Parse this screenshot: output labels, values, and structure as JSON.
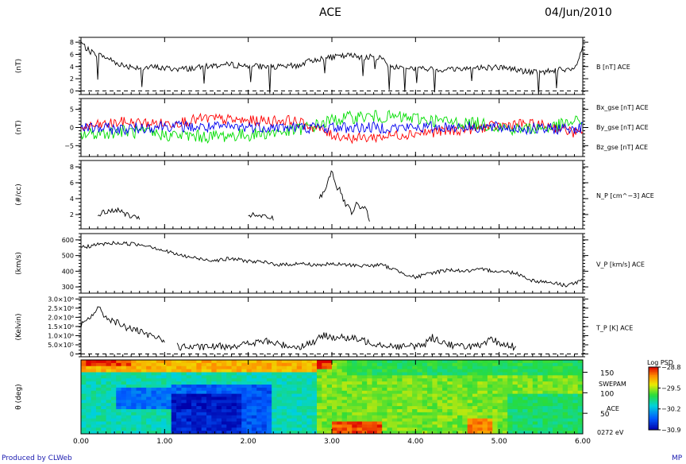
{
  "header": {
    "title": "ACE",
    "date": "04/Jun/2010"
  },
  "footer": {
    "credit": "Produced by CLWeb",
    "corner": "MP"
  },
  "chart_data": {
    "type": "line",
    "x_ticks": [
      "0.00",
      "1.00",
      "2.00",
      "3.00",
      "4.00",
      "5.00",
      "6.00"
    ],
    "xlim": [
      0,
      6
    ],
    "panels": [
      {
        "id": "b",
        "ylabel": "(nT)",
        "ylim": [
          -0.6,
          8.8
        ],
        "ticks": [
          {
            "v": 0,
            "t": "0"
          },
          {
            "v": 2,
            "t": "2"
          },
          {
            "v": 4,
            "t": "4"
          },
          {
            "v": 6,
            "t": "6"
          },
          {
            "v": 8,
            "t": "8"
          }
        ],
        "dashed_zero": true,
        "series": [
          {
            "label": "B [nT] ACE",
            "color": "#000000",
            "points": [
              [
                0,
                8.0
              ],
              [
                0.05,
                7.2
              ],
              [
                0.1,
                6.5
              ],
              [
                0.2,
                6.0
              ],
              [
                0.3,
                5.5
              ],
              [
                0.4,
                4.8
              ],
              [
                0.5,
                4.2
              ],
              [
                0.6,
                4.0
              ],
              [
                0.75,
                3.8
              ],
              [
                0.9,
                3.9
              ],
              [
                1.0,
                3.7
              ],
              [
                1.2,
                3.6
              ],
              [
                1.4,
                3.8
              ],
              [
                1.6,
                4.2
              ],
              [
                1.8,
                4.3
              ],
              [
                2.0,
                4.1
              ],
              [
                2.2,
                4.0
              ],
              [
                2.4,
                3.9
              ],
              [
                2.6,
                4.2
              ],
              [
                2.8,
                5.2
              ],
              [
                3.0,
                5.5
              ],
              [
                3.2,
                5.8
              ],
              [
                3.4,
                5.6
              ],
              [
                3.6,
                5.4
              ],
              [
                3.7,
                4.0
              ],
              [
                3.9,
                3.8
              ],
              [
                4.1,
                3.6
              ],
              [
                4.3,
                3.5
              ],
              [
                4.6,
                3.7
              ],
              [
                4.9,
                3.9
              ],
              [
                5.1,
                3.8
              ],
              [
                5.3,
                3.2
              ],
              [
                5.5,
                3.0
              ],
              [
                5.7,
                3.6
              ],
              [
                5.8,
                3.2
              ],
              [
                5.9,
                3.5
              ],
              [
                6.0,
                7.0
              ]
            ],
            "noise": 0.5
          }
        ]
      },
      {
        "id": "bxyz",
        "ylabel": "(nT)",
        "ylim": [
          -8,
          8
        ],
        "ticks": [
          {
            "v": -5,
            "t": "−5"
          },
          {
            "v": 0,
            "t": "0"
          },
          {
            "v": 5,
            "t": "5"
          }
        ],
        "dashed_zero": false,
        "series": [
          {
            "label": "Bx_gse [nT] ACE",
            "color": "#ff0000",
            "points": [
              [
                0,
                0
              ],
              [
                0.5,
                1.5
              ],
              [
                1.0,
                1.0
              ],
              [
                1.5,
                2.5
              ],
              [
                2.0,
                1.8
              ],
              [
                2.5,
                2.0
              ],
              [
                2.8,
                0
              ],
              [
                3.0,
                -2.0
              ],
              [
                3.3,
                -3.0
              ],
              [
                3.6,
                -2.5
              ],
              [
                4.0,
                -1.5
              ],
              [
                4.4,
                -1.0
              ],
              [
                4.8,
                0
              ],
              [
                5.2,
                1.0
              ],
              [
                5.6,
                0.5
              ],
              [
                6.0,
                -2.0
              ]
            ],
            "noise": 1.5
          },
          {
            "label": "By_gse [nT] ACE",
            "color": "#00dd00",
            "points": [
              [
                0,
                -2
              ],
              [
                0.5,
                -1
              ],
              [
                1.0,
                -2.0
              ],
              [
                1.5,
                -2.5
              ],
              [
                2.0,
                -2.0
              ],
              [
                2.5,
                -1.0
              ],
              [
                2.8,
                0.5
              ],
              [
                3.0,
                2.0
              ],
              [
                3.3,
                3.0
              ],
              [
                3.6,
                3.0
              ],
              [
                4.0,
                2.5
              ],
              [
                4.4,
                1.5
              ],
              [
                4.8,
                1.0
              ],
              [
                5.2,
                -0.5
              ],
              [
                5.6,
                0
              ],
              [
                6.0,
                2.0
              ]
            ],
            "noise": 1.8
          },
          {
            "label": "Bz_gse [nT] ACE",
            "color": "#0000ee",
            "points": [
              [
                0,
                0
              ],
              [
                0.5,
                -0.5
              ],
              [
                1.0,
                0.5
              ],
              [
                1.5,
                0
              ],
              [
                2.0,
                0.2
              ],
              [
                2.5,
                0
              ],
              [
                3.0,
                0
              ],
              [
                3.5,
                0
              ],
              [
                4.0,
                0
              ],
              [
                4.5,
                0.2
              ],
              [
                5.0,
                0
              ],
              [
                5.5,
                -0.5
              ],
              [
                6.0,
                0
              ]
            ],
            "noise": 1.6
          }
        ]
      },
      {
        "id": "np",
        "ylabel": "(#/cc)",
        "ylim": [
          0.2,
          8.8
        ],
        "ticks": [
          {
            "v": 2,
            "t": "2"
          },
          {
            "v": 4,
            "t": "4"
          },
          {
            "v": 6,
            "t": "6"
          },
          {
            "v": 8,
            "t": "8"
          }
        ],
        "dashed_zero": false,
        "series": [
          {
            "label": "N_P [cm^−3] ACE",
            "color": "#000000",
            "segments": [
              [
                [
                  0.2,
                  2.0
                ],
                [
                  0.3,
                  2.3
                ],
                [
                  0.4,
                  2.6
                ],
                [
                  0.5,
                  2.3
                ],
                [
                  0.6,
                  1.7
                ],
                [
                  0.7,
                  1.4
                ]
              ],
              [
                [
                  2.0,
                  2.0
                ],
                [
                  2.1,
                  1.8
                ],
                [
                  2.2,
                  1.7
                ],
                [
                  2.3,
                  1.5
                ]
              ],
              [
                [
                  2.85,
                  4.0
                ],
                [
                  2.9,
                  4.8
                ],
                [
                  2.95,
                  6.0
                ],
                [
                  3.0,
                  7.8
                ],
                [
                  3.05,
                  5.5
                ],
                [
                  3.1,
                  5.0
                ],
                [
                  3.15,
                  3.5
                ],
                [
                  3.2,
                  2.8
                ],
                [
                  3.25,
                  2.0
                ],
                [
                  3.3,
                  3.5
                ],
                [
                  3.35,
                  2.5
                ],
                [
                  3.4,
                  3.0
                ],
                [
                  3.45,
                  1.4
                ]
              ]
            ],
            "noise": 0.35
          }
        ]
      },
      {
        "id": "vp",
        "ylabel": "(km/s)",
        "ylim": [
          260,
          640
        ],
        "ticks": [
          {
            "v": 300,
            "t": "300"
          },
          {
            "v": 400,
            "t": "400"
          },
          {
            "v": 500,
            "t": "500"
          },
          {
            "v": 600,
            "t": "600"
          }
        ],
        "dashed_zero": false,
        "series": [
          {
            "label": "V_P [km/s] ACE",
            "color": "#000000",
            "points": [
              [
                0,
                550
              ],
              [
                0.2,
                570
              ],
              [
                0.4,
                580
              ],
              [
                0.6,
                575
              ],
              [
                0.8,
                565
              ],
              [
                1.0,
                530
              ],
              [
                1.2,
                500
              ],
              [
                1.4,
                480
              ],
              [
                1.6,
                470
              ],
              [
                1.8,
                480
              ],
              [
                2.0,
                465
              ],
              [
                2.2,
                455
              ],
              [
                2.4,
                440
              ],
              [
                2.6,
                450
              ],
              [
                2.8,
                440
              ],
              [
                3.0,
                445
              ],
              [
                3.2,
                440
              ],
              [
                3.4,
                435
              ],
              [
                3.6,
                440
              ],
              [
                3.8,
                400
              ],
              [
                4.0,
                360
              ],
              [
                4.2,
                390
              ],
              [
                4.4,
                410
              ],
              [
                4.6,
                400
              ],
              [
                4.8,
                410
              ],
              [
                5.0,
                400
              ],
              [
                5.2,
                390
              ],
              [
                5.4,
                340
              ],
              [
                5.6,
                330
              ],
              [
                5.8,
                310
              ],
              [
                6.0,
                340
              ]
            ],
            "noise": 12
          }
        ]
      },
      {
        "id": "tp",
        "ylabel": "(Kelvin)",
        "ylim": [
          -150000,
          3100000
        ],
        "ticks": [
          {
            "v": 0,
            "t": "0"
          },
          {
            "v": 500000,
            "t": "5.0×10⁵"
          },
          {
            "v": 1000000,
            "t": "1.0×10⁶"
          },
          {
            "v": 1500000,
            "t": "1.5×10⁶"
          },
          {
            "v": 2000000,
            "t": "2.0×10⁶"
          },
          {
            "v": 2500000,
            "t": "2.5×10⁶"
          },
          {
            "v": 3000000,
            "t": "3.0×10⁶"
          }
        ],
        "dashed_zero": true,
        "series": [
          {
            "label": "T_P [K] ACE",
            "color": "#000000",
            "segments": [
              [
                [
                  0,
                  1500000
                ],
                [
                  0.1,
                  2000000
                ],
                [
                  0.2,
                  2500000
                ],
                [
                  0.3,
                  2000000
                ],
                [
                  0.4,
                  1800000
                ],
                [
                  0.5,
                  1500000
                ],
                [
                  0.6,
                  1400000
                ],
                [
                  0.7,
                  1200000
                ],
                [
                  0.8,
                  1000000
                ],
                [
                  0.9,
                  900000
                ],
                [
                  1.0,
                  800000
                ]
              ],
              [
                [
                  1.15,
                  400000
                ],
                [
                  1.4,
                  350000
                ],
                [
                  1.6,
                  400000
                ],
                [
                  1.8,
                  450000
                ],
                [
                  2.0,
                  550000
                ],
                [
                  2.2,
                  700000
                ],
                [
                  2.4,
                  500000
                ],
                [
                  2.6,
                  380000
                ],
                [
                  2.8,
                  700000
                ],
                [
                  2.9,
                  1000000
                ],
                [
                  3.1,
                  900000
                ],
                [
                  3.3,
                  800000
                ],
                [
                  3.5,
                  600000
                ],
                [
                  3.7,
                  450000
                ],
                [
                  3.9,
                  400000
                ],
                [
                  4.1,
                  500000
                ],
                [
                  4.2,
                  900000
                ],
                [
                  4.3,
                  700000
                ],
                [
                  4.5,
                  400000
                ],
                [
                  4.6,
                  450000
                ],
                [
                  4.8,
                  400000
                ],
                [
                  4.9,
                  800000
                ],
                [
                  5.0,
                  600000
                ],
                [
                  5.1,
                  450000
                ],
                [
                  5.2,
                  400000
                ]
              ]
            ],
            "noise": 200000
          }
        ]
      },
      {
        "id": "spec",
        "type": "heatmap",
        "ylabel": "θ (deg)",
        "ylim": [
          0,
          180
        ],
        "ticks": [
          {
            "v": 50,
            "t": "50"
          },
          {
            "v": 100,
            "t": "100"
          },
          {
            "v": 150,
            "t": "150"
          }
        ],
        "right_labels": [
          "SWEPAM",
          "ACE",
          "0272 eV"
        ],
        "colorbar": {
          "title": "Log PSD",
          "min_label": "−30.9",
          "max_label": "−28.8",
          "tick_labels": [
            "−28.8",
            "−29.5",
            "−30.2",
            "−30.9"
          ],
          "range": [
            -30.9,
            -28.8
          ]
        }
      }
    ]
  }
}
